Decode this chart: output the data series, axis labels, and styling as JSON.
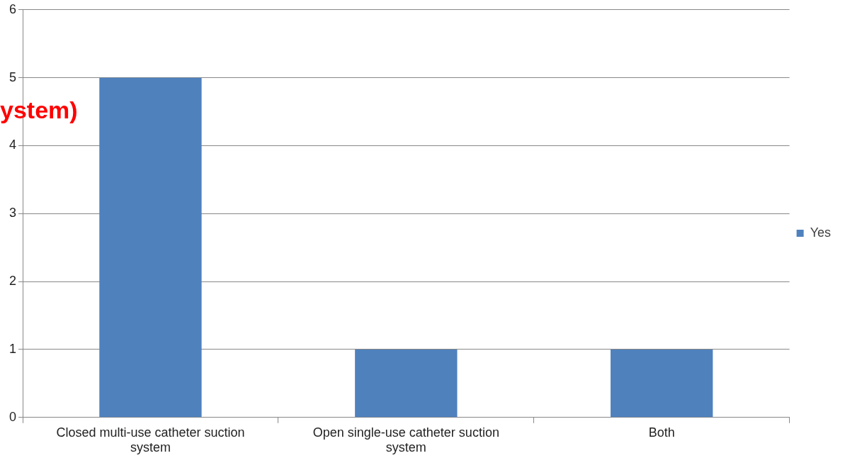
{
  "chart_data": {
    "type": "bar",
    "categories": [
      "Closed multi-use catheter suction system",
      "Open single-use catheter suction system",
      "Both"
    ],
    "series": [
      {
        "name": "Yes",
        "color": "#4f81bd",
        "values": [
          5,
          1,
          1
        ]
      }
    ],
    "ylim": [
      0,
      6
    ],
    "yticks": [
      0,
      1,
      2,
      3,
      4,
      5,
      6
    ],
    "grid": "y",
    "legend": "right",
    "annotations": [
      "ystem)"
    ]
  }
}
